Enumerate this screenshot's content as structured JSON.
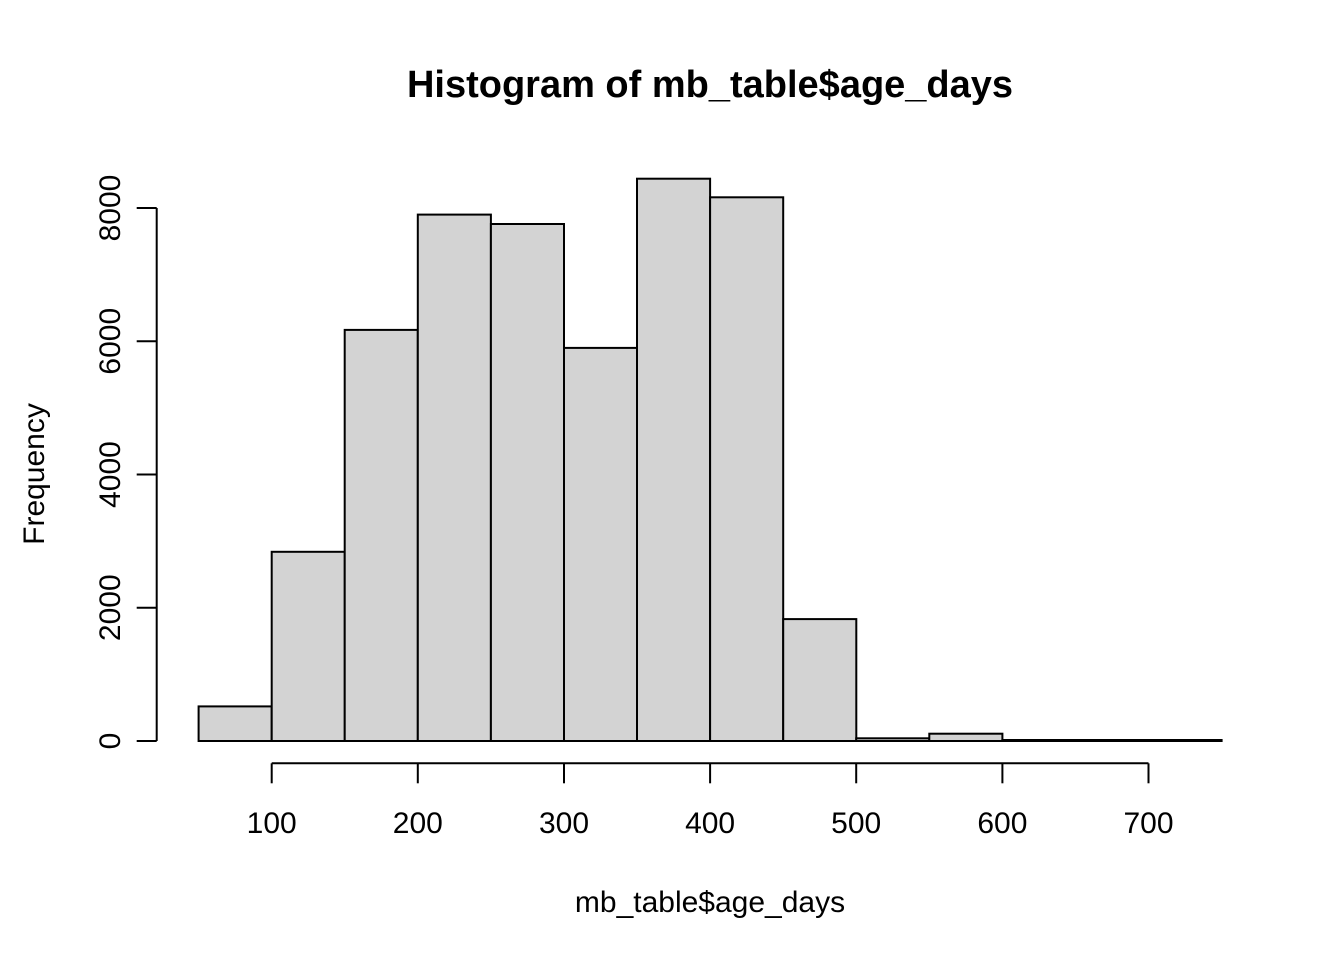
{
  "page": {
    "background": "#ffffff"
  },
  "chart_data": {
    "type": "bar",
    "chart_style": "r-base-histogram",
    "title": "Histogram of mb_table$age_days",
    "xlabel": "mb_table$age_days",
    "ylabel": "Frequency",
    "bin_edges": [
      50,
      100,
      150,
      200,
      250,
      300,
      350,
      400,
      450,
      500,
      550,
      600,
      650,
      700,
      750
    ],
    "counts": [
      520,
      2840,
      6170,
      7900,
      7760,
      5900,
      8440,
      8160,
      1830,
      40,
      110,
      15,
      15,
      15
    ],
    "x_ticks": [
      100,
      200,
      300,
      400,
      500,
      600,
      700
    ],
    "y_ticks": [
      0,
      2000,
      4000,
      6000,
      8000
    ],
    "xlim": [
      50,
      750
    ],
    "ylim": [
      0,
      8450
    ],
    "grid": false,
    "legend": "none",
    "bar_fill": "#d3d3d3",
    "bar_stroke": "#000000",
    "axis_color": "#000000",
    "text_color": "#000000"
  }
}
